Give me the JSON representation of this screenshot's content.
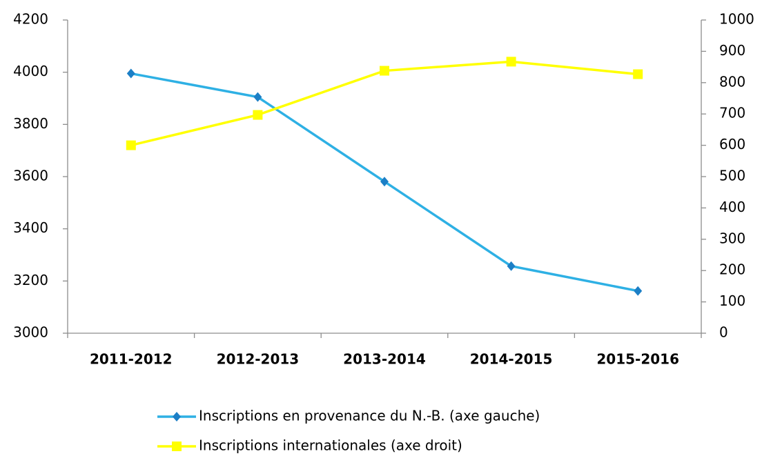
{
  "chart_data": {
    "type": "line",
    "categories": [
      "2011-2012",
      "2012-2013",
      "2013-2014",
      "2014-2015",
      "2015-2016"
    ],
    "series": [
      {
        "name": "Inscriptions en provenance du N.-B. (axe gauche)",
        "color": "#2eb0e4",
        "marker_color": "#1c7fc6",
        "marker": "diamond",
        "values": [
          3995,
          3905,
          3581,
          3257,
          3162
        ]
      },
      {
        "name": "Inscriptions internationales (axe droit)",
        "color": "#ffff00",
        "marker_color": "#ffff00",
        "marker": "square",
        "axis": "y2",
        "values": [
          600,
          697,
          838,
          867,
          827
        ]
      }
    ],
    "ylim": [
      3000,
      4200
    ],
    "yticks": [
      3000,
      3200,
      3400,
      3600,
      3800,
      4000,
      4200
    ],
    "y2lim": [
      0,
      1000
    ],
    "y2ticks": [
      0,
      100,
      200,
      300,
      400,
      500,
      600,
      700,
      800,
      900,
      1000
    ],
    "grid": false,
    "legend": "bottom"
  }
}
